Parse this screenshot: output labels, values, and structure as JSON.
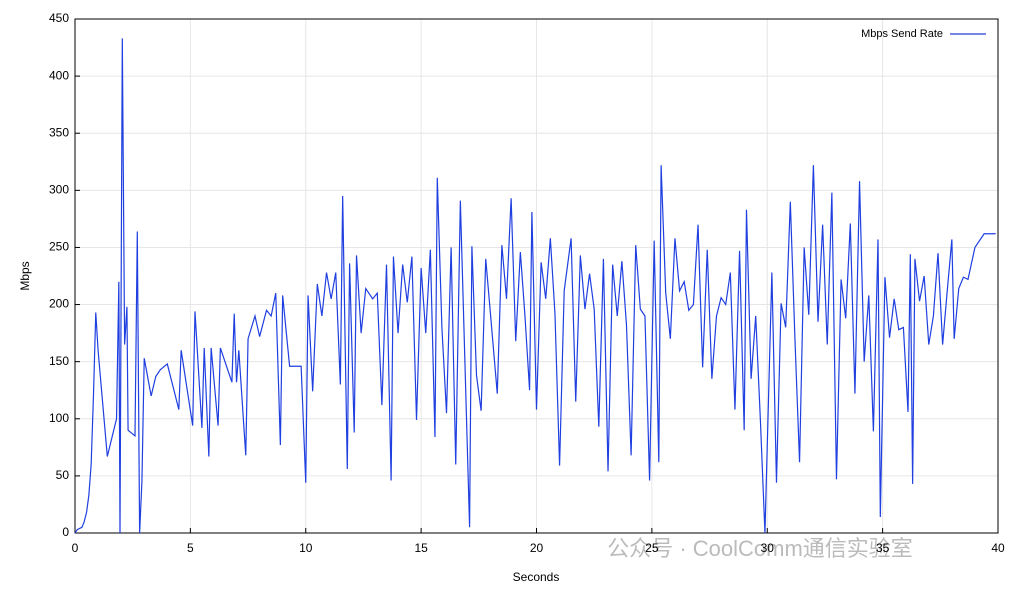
{
  "chart_data": {
    "type": "line",
    "x_label": "Seconds",
    "y_label": "Mbps",
    "xlim": [
      0,
      40
    ],
    "ylim": [
      0,
      450
    ],
    "xticks": [
      0,
      5,
      10,
      15,
      20,
      25,
      30,
      35,
      40
    ],
    "yticks": [
      0,
      50,
      100,
      150,
      200,
      250,
      300,
      350,
      400,
      450
    ],
    "grid": true,
    "legend": "top-right",
    "watermark": "公众号 · CoolComm通信实验室",
    "series": [
      {
        "name": "Mbps Send Rate",
        "color": "#1f3fe0",
        "x": [
          0,
          0.1,
          0.3,
          0.4,
          0.5,
          0.6,
          0.7,
          0.8,
          0.9,
          1.0,
          1.4,
          1.8,
          1.9,
          1.95,
          2.05,
          2.15,
          2.25,
          2.3,
          2.6,
          2.7,
          2.8,
          2.9,
          3.0,
          3.3,
          3.5,
          3.7,
          4.0,
          4.5,
          4.6,
          5.1,
          5.2,
          5.5,
          5.6,
          5.8,
          5.9,
          6.2,
          6.3,
          6.8,
          6.9,
          7.0,
          7.1,
          7.4,
          7.5,
          7.8,
          8.0,
          8.3,
          8.5,
          8.7,
          8.9,
          9.0,
          9.3,
          9.8,
          10.0,
          10.1,
          10.3,
          10.5,
          10.7,
          10.9,
          11.1,
          11.3,
          11.5,
          11.6,
          11.8,
          11.9,
          12.1,
          12.2,
          12.4,
          12.6,
          12.9,
          13.1,
          13.3,
          13.5,
          13.7,
          13.8,
          14.0,
          14.2,
          14.4,
          14.6,
          14.8,
          15.0,
          15.2,
          15.4,
          15.6,
          15.7,
          15.9,
          16.1,
          16.3,
          16.5,
          16.7,
          16.9,
          17.1,
          17.2,
          17.4,
          17.6,
          17.8,
          18.0,
          18.3,
          18.5,
          18.7,
          18.9,
          19.1,
          19.3,
          19.5,
          19.7,
          19.8,
          20.0,
          20.2,
          20.4,
          20.6,
          20.8,
          21.0,
          21.2,
          21.5,
          21.7,
          21.9,
          22.1,
          22.3,
          22.5,
          22.7,
          22.9,
          23.1,
          23.3,
          23.5,
          23.7,
          23.9,
          24.1,
          24.3,
          24.5,
          24.7,
          24.9,
          25.1,
          25.3,
          25.4,
          25.6,
          25.8,
          26.0,
          26.2,
          26.4,
          26.6,
          26.8,
          27.0,
          27.2,
          27.4,
          27.6,
          27.8,
          28.0,
          28.2,
          28.4,
          28.6,
          28.8,
          29.0,
          29.1,
          29.3,
          29.5,
          29.7,
          29.9,
          30.2,
          30.4,
          30.6,
          30.8,
          31.0,
          31.2,
          31.4,
          31.6,
          31.8,
          32.0,
          32.2,
          32.4,
          32.6,
          32.8,
          33.0,
          33.2,
          33.4,
          33.6,
          33.8,
          34.0,
          34.2,
          34.4,
          34.6,
          34.8,
          34.9,
          35.1,
          35.3,
          35.5,
          35.7,
          35.9,
          36.1,
          36.2,
          36.3,
          36.4,
          36.6,
          36.8,
          37.0,
          37.2,
          37.4,
          37.6,
          37.8,
          38.0,
          38.1,
          38.3,
          38.5,
          38.7,
          39.0,
          39.4,
          39.9
        ],
        "values": [
          0,
          3,
          5,
          10,
          18,
          33,
          60,
          120,
          193,
          160,
          67,
          100,
          220,
          0,
          433,
          165,
          198,
          90,
          85,
          264,
          0,
          45,
          153,
          120,
          137,
          143,
          148,
          108,
          160,
          94,
          194,
          92,
          162,
          67,
          162,
          94,
          162,
          132,
          192,
          132,
          160,
          68,
          170,
          190,
          172,
          195,
          190,
          210,
          77,
          208,
          146,
          146,
          44,
          208,
          124,
          218,
          190,
          228,
          205,
          228,
          130,
          295,
          56,
          236,
          88,
          243,
          175,
          214,
          205,
          210,
          112,
          235,
          46,
          242,
          175,
          235,
          202,
          242,
          99,
          232,
          175,
          248,
          84,
          311,
          180,
          105,
          250,
          60,
          291,
          148,
          5,
          251,
          138,
          107,
          240,
          193,
          122,
          252,
          205,
          293,
          168,
          246,
          190,
          125,
          281,
          108,
          237,
          205,
          258,
          192,
          59,
          212,
          258,
          115,
          243,
          196,
          227,
          196,
          93,
          240,
          54,
          235,
          190,
          238,
          182,
          68,
          252,
          196,
          190,
          46,
          256,
          62,
          322,
          210,
          170,
          258,
          212,
          220,
          195,
          200,
          270,
          145,
          248,
          135,
          190,
          206,
          200,
          228,
          108,
          247,
          90,
          283,
          135,
          190,
          100,
          0,
          228,
          44,
          201,
          180,
          290,
          170,
          62,
          250,
          191,
          322,
          185,
          270,
          165,
          298,
          47,
          222,
          188,
          271,
          122,
          308,
          150,
          208,
          89,
          257,
          14,
          224,
          171,
          205,
          178,
          180,
          106,
          244,
          43,
          240,
          203,
          225,
          165,
          190,
          245,
          165,
          212,
          257,
          170,
          214,
          224,
          222,
          250,
          262,
          262
        ]
      }
    ]
  }
}
